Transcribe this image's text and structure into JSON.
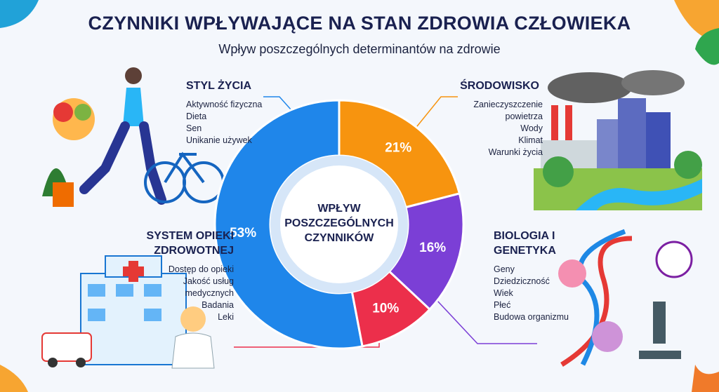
{
  "chart_data": {
    "type": "pie",
    "donut": true,
    "title": "CZYNNIKI WPŁYWAJĄCE NA STAN ZDROWIA CZŁOWIEKA",
    "subtitle": "Wpływ poszczególnych determinantów na zdrowie",
    "center_label": "WPŁYW POSZCZEGÓLNYCH CZYNNIKÓW",
    "categories": [
      "STYL ŻYCIA",
      "ŚRODOWISKO",
      "BIOLOGIA I GENETYKA",
      "SYSTEM OPIEKI ZDROWOTNEJ"
    ],
    "values": [
      53,
      21,
      16,
      10
    ],
    "value_labels": [
      "53%",
      "21%",
      "16%",
      "10%"
    ],
    "colors": [
      "#1f86ea",
      "#f7940f",
      "#7b3fd6",
      "#ec2f4b"
    ],
    "category_items": [
      [
        "Aktywność fizyczna",
        "Dieta",
        "Sen",
        "Unikanie używek"
      ],
      [
        "Zanieczyszczenie powietrza",
        "Wody",
        "Klimat",
        "Warunki życia"
      ],
      [
        "Geny",
        "Dziedziczność",
        "Wiek",
        "Płeć",
        "Budowa organizmu"
      ],
      [
        "Dostęp do opieki",
        "Jakość usług medycznych",
        "Badania",
        "Leki"
      ]
    ]
  }
}
